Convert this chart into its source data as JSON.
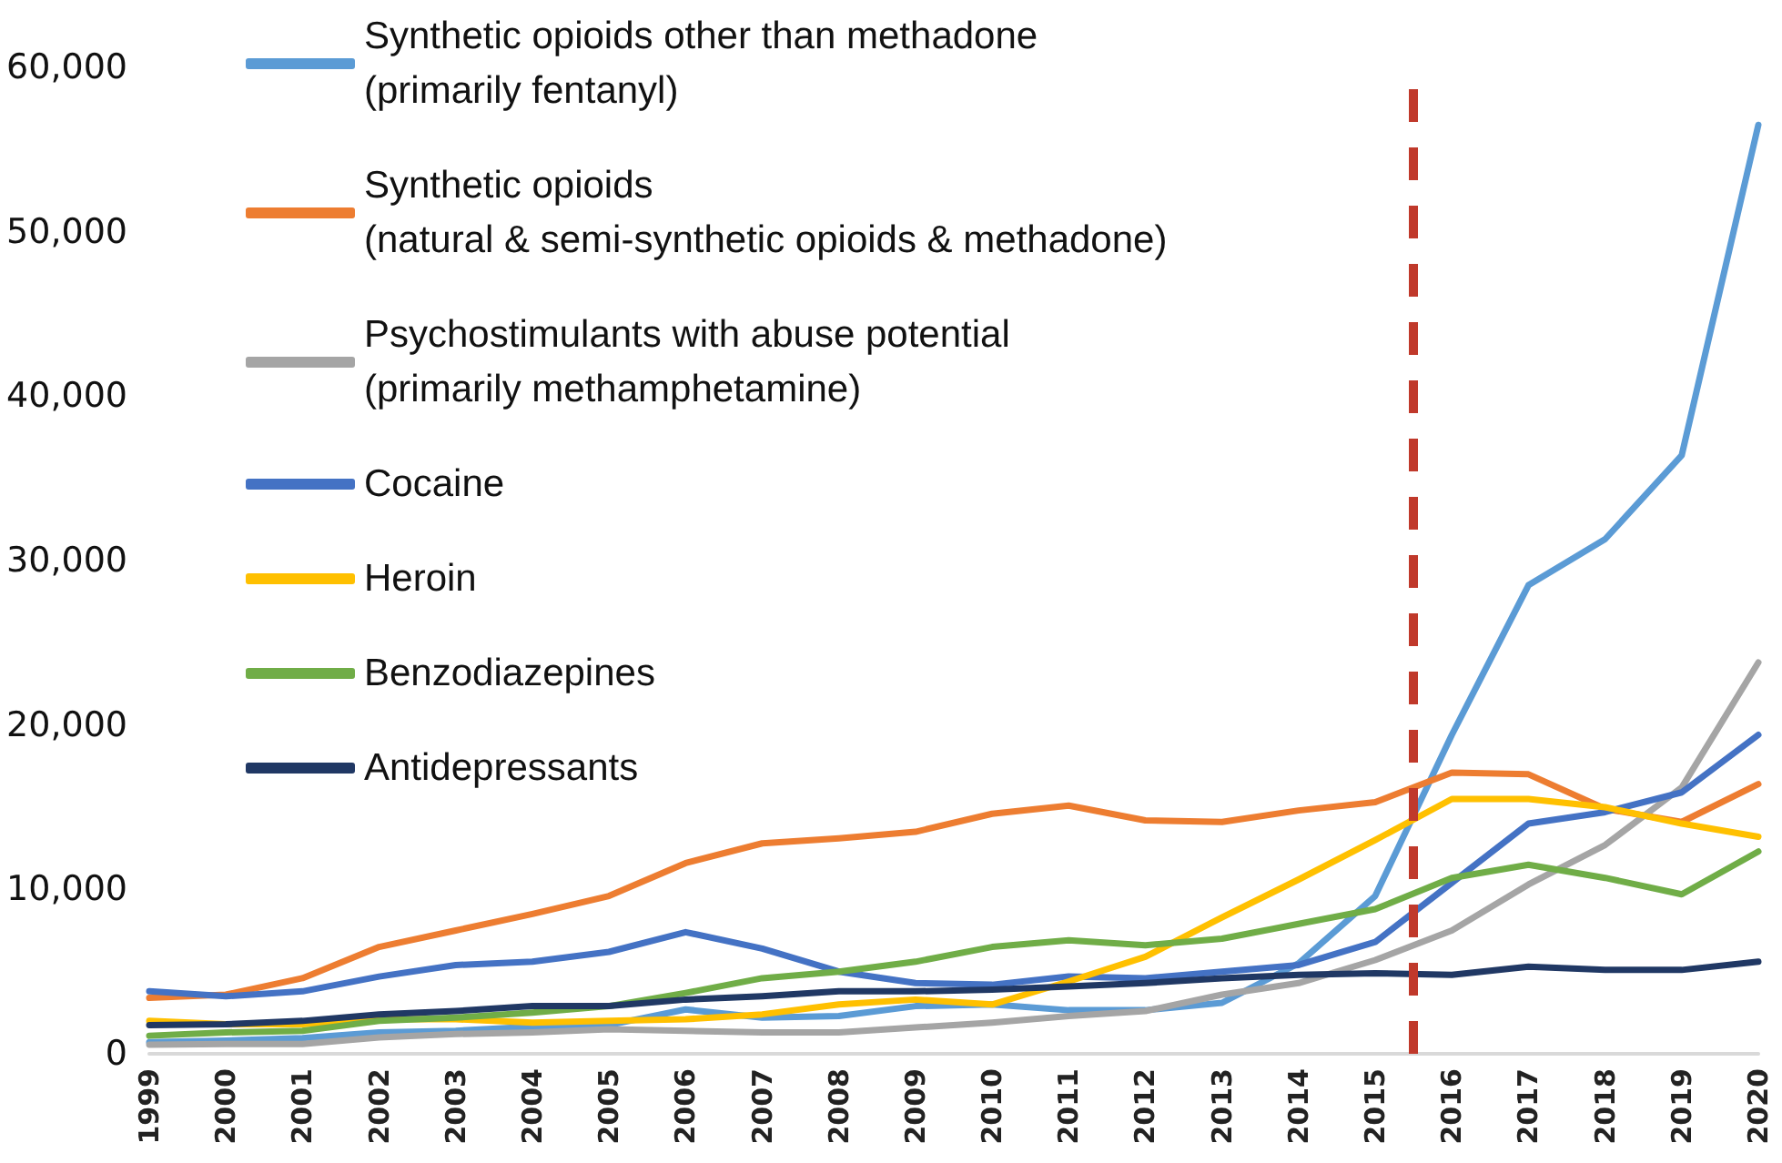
{
  "chart_data": {
    "type": "line",
    "x": [
      1999,
      2000,
      2001,
      2002,
      2003,
      2004,
      2005,
      2006,
      2007,
      2008,
      2009,
      2010,
      2011,
      2012,
      2013,
      2014,
      2015,
      2016,
      2017,
      2018,
      2019,
      2020
    ],
    "series": [
      {
        "name": "Synthetic opioids other than methadone\n(primarily fentanyl)",
        "color": "#5b9bd5",
        "values": [
          700,
          800,
          950,
          1300,
          1400,
          1650,
          1750,
          2700,
          2200,
          2300,
          2900,
          3000,
          2650,
          2650,
          3100,
          5500,
          9600,
          19400,
          28500,
          31300,
          36400,
          56500
        ]
      },
      {
        "name": "Synthetic opioids\n(natural & semi-synthetic opioids & methadone)",
        "color": "#ed7d31",
        "values": [
          3400,
          3600,
          4600,
          6500,
          7500,
          8500,
          9600,
          11600,
          12800,
          13100,
          13500,
          14600,
          15100,
          14200,
          14100,
          14800,
          15300,
          17100,
          17000,
          14900,
          14100,
          16400
        ]
      },
      {
        "name": "Psychostimulants with abuse potential\n(primarily methamphetamine)",
        "color": "#a5a5a5",
        "values": [
          550,
          600,
          600,
          1000,
          1200,
          1300,
          1500,
          1400,
          1300,
          1300,
          1600,
          1900,
          2300,
          2600,
          3600,
          4300,
          5700,
          7500,
          10300,
          12700,
          16200,
          23800
        ]
      },
      {
        "name": "Cocaine",
        "color": "#4472c4",
        "values": [
          3800,
          3500,
          3800,
          4700,
          5400,
          5600,
          6200,
          7400,
          6400,
          5000,
          4300,
          4200,
          4700,
          4600,
          5000,
          5400,
          6800,
          10400,
          14000,
          14700,
          15900,
          19400
        ]
      },
      {
        "name": "Heroin",
        "color": "#ffc000",
        "values": [
          2000,
          1800,
          1800,
          2100,
          2100,
          1900,
          2000,
          2100,
          2400,
          3000,
          3300,
          3000,
          4400,
          5900,
          8300,
          10600,
          13000,
          15500,
          15500,
          15000,
          14000,
          13200
        ]
      },
      {
        "name": "Benzodiazepines",
        "color": "#70ad47",
        "values": [
          1100,
          1300,
          1400,
          2000,
          2200,
          2500,
          2900,
          3700,
          4600,
          5000,
          5600,
          6500,
          6900,
          6600,
          7000,
          7900,
          8800,
          10700,
          11500,
          10700,
          9700,
          12300
        ]
      },
      {
        "name": "Antidepressants",
        "color": "#203864",
        "values": [
          1750,
          1800,
          2000,
          2400,
          2600,
          2900,
          2900,
          3300,
          3500,
          3800,
          3800,
          3900,
          4100,
          4300,
          4600,
          4800,
          4900,
          4800,
          5300,
          5100,
          5100,
          5600
        ]
      }
    ],
    "xlim": [
      1999,
      2020
    ],
    "xticks": [
      1999,
      2000,
      2001,
      2002,
      2003,
      2004,
      2005,
      2006,
      2007,
      2008,
      2009,
      2010,
      2011,
      2012,
      2013,
      2014,
      2015,
      2016,
      2017,
      2018,
      2019,
      2020
    ],
    "ylim": [
      0,
      60000
    ],
    "yticks": [
      {
        "value": 0,
        "label": "0"
      },
      {
        "value": 10000,
        "label": "10,000"
      },
      {
        "value": 20000,
        "label": "20,000"
      },
      {
        "value": 30000,
        "label": "30,000"
      },
      {
        "value": 40000,
        "label": "40,000"
      },
      {
        "value": 50000,
        "label": "50,000"
      },
      {
        "value": 60000,
        "label": "60,000"
      }
    ],
    "ref_lines": [
      {
        "axis": "x",
        "value": 2015.5,
        "color": "#c0392b",
        "line_style": "dashed"
      }
    ],
    "grid": false,
    "legend": "top left",
    "marker": "none",
    "line_style": "solid"
  }
}
